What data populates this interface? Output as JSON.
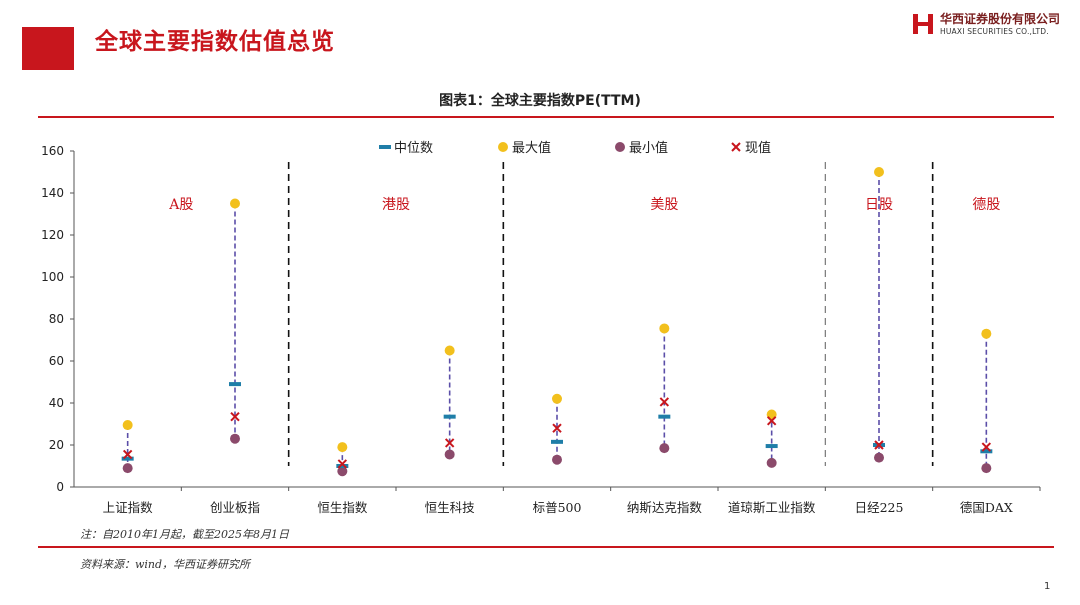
{
  "slide": {
    "title": "全球主要指数估值总览",
    "page_number": "1",
    "accent_color": "#c8161d"
  },
  "logo": {
    "name_cn": "华西证券股份有限公司",
    "name_en": "HUAXI SECURITIES CO.,LTD."
  },
  "chart_caption": "图表1：全球主要指数PE(TTM)",
  "note": "注：自2010年1月起，截至2025年8月1日",
  "source": "资料来源：wind，华西证券研究所",
  "chart_data": {
    "type": "scatter",
    "title": "图表1：全球主要指数PE(TTM)",
    "categories": [
      "上证指数",
      "创业板指",
      "恒生指数",
      "恒生科技",
      "标普500",
      "纳斯达克指数",
      "道琼斯工业指数",
      "日经225",
      "德国DAX"
    ],
    "ylim": [
      0,
      160
    ],
    "yticks": [
      0,
      20,
      40,
      60,
      80,
      100,
      120,
      140,
      160
    ],
    "xlabel": "",
    "ylabel": "",
    "grid": false,
    "legend_position": "top",
    "series": [
      {
        "name": "中位数",
        "marker": "dash",
        "color": "#1f7ea8",
        "values": [
          13.5,
          49,
          10,
          33.5,
          21.5,
          33.5,
          19.5,
          20,
          17
        ]
      },
      {
        "name": "最大值",
        "marker": "circle",
        "color": "#f2c01d",
        "values": [
          29.5,
          135,
          19,
          65,
          42,
          75.5,
          34.5,
          150,
          73
        ]
      },
      {
        "name": "最小值",
        "marker": "circle",
        "color": "#8b4a6b",
        "values": [
          9,
          23,
          7.5,
          15.5,
          13,
          18.5,
          11.5,
          14,
          9
        ]
      },
      {
        "name": "现值",
        "marker": "x",
        "color": "#c8161d",
        "values": [
          15.5,
          33.5,
          11,
          21,
          28,
          40.5,
          31.5,
          20,
          19
        ]
      }
    ],
    "range_line_color": "#5b4ea8",
    "groups": [
      {
        "label": "A股",
        "start": 0,
        "end": 1
      },
      {
        "label": "港股",
        "start": 2,
        "end": 3
      },
      {
        "label": "美股",
        "start": 4,
        "end": 6
      },
      {
        "label": "日股",
        "start": 7,
        "end": 7
      },
      {
        "label": "德股",
        "start": 8,
        "end": 8
      }
    ]
  }
}
